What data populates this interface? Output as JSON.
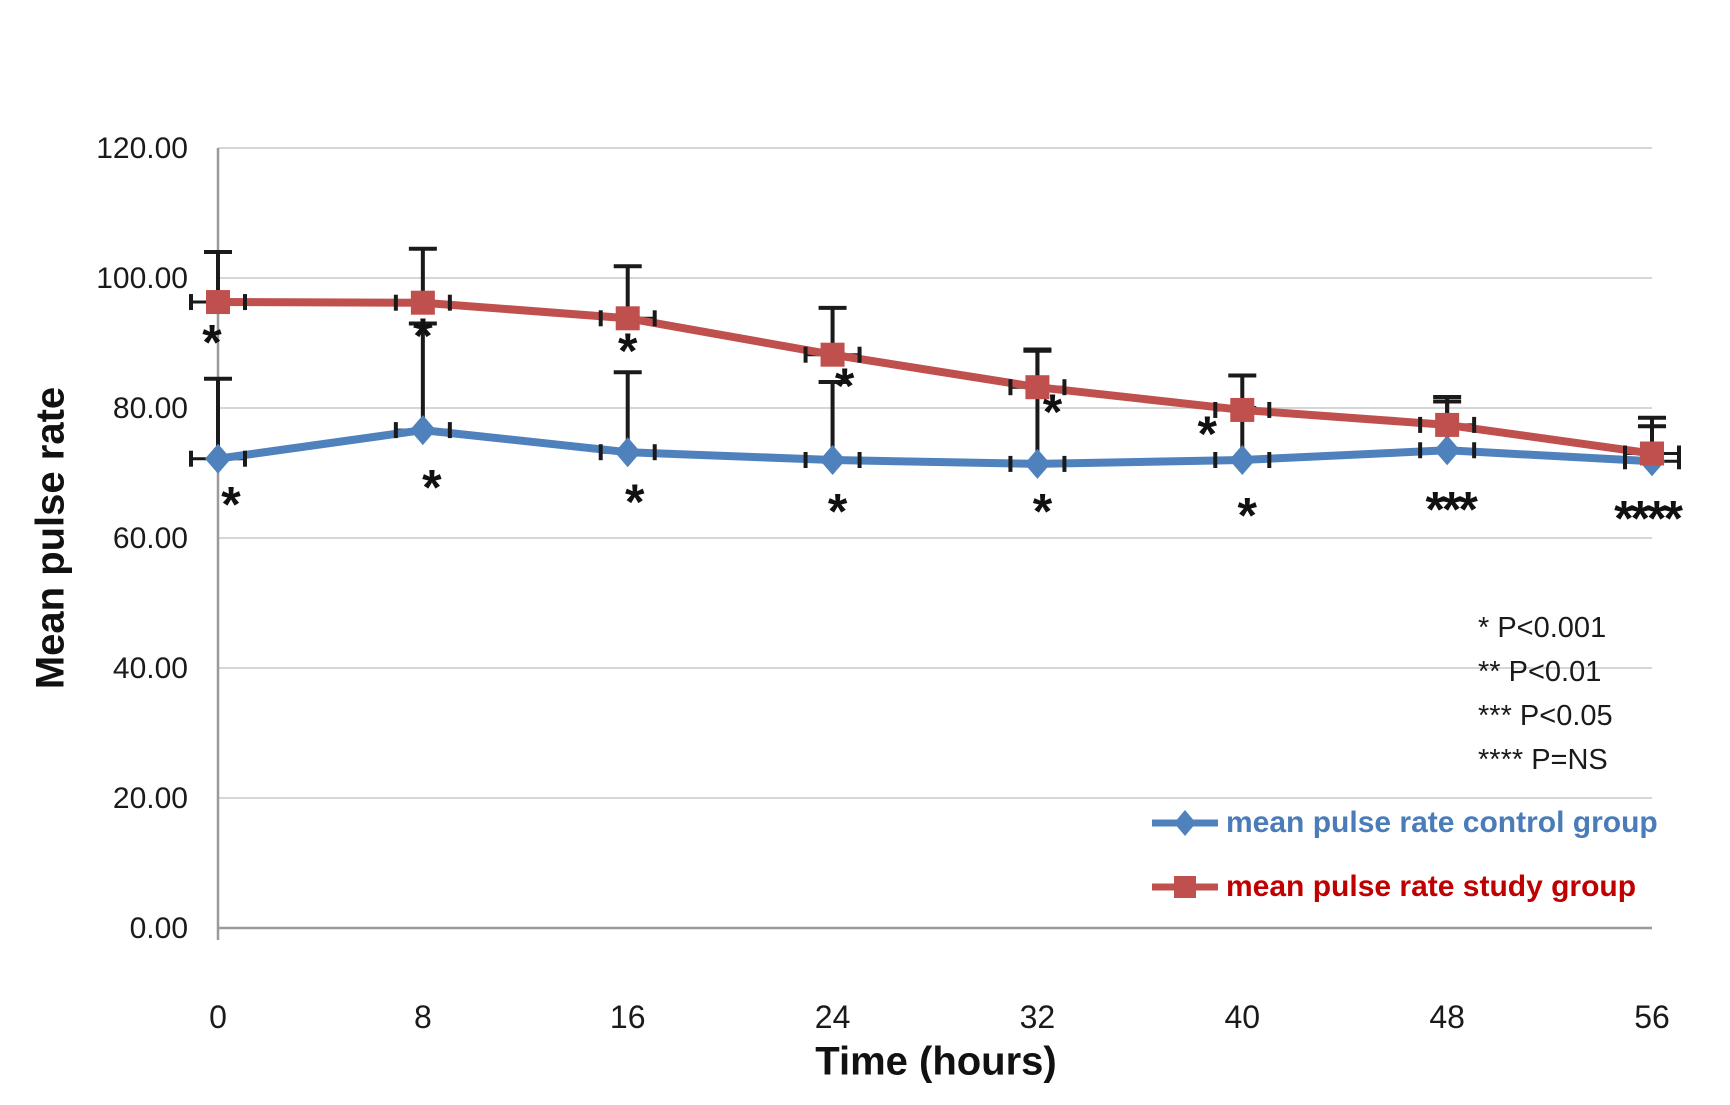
{
  "chart_data": {
    "type": "line",
    "title": "",
    "xlabel": "Time (hours)",
    "ylabel": "Mean pulse rate",
    "x_values": [
      0,
      8,
      16,
      24,
      32,
      40,
      48,
      56
    ],
    "x_tick_labels": [
      "0",
      "8",
      "16",
      "24",
      "32",
      "40",
      "48",
      "56"
    ],
    "y_tick_values": [
      0,
      20,
      40,
      60,
      80,
      100,
      120
    ],
    "y_tick_labels": [
      "0.00",
      "20.00",
      "40.00",
      "60.00",
      "80.00",
      "100.00",
      "120.00"
    ],
    "ylim": [
      0,
      120
    ],
    "grid": true,
    "legend_position": "inside-bottom-right",
    "series": [
      {
        "name": "mean pulse rate control group",
        "color": "#4F81BD",
        "marker": "diamond",
        "values": [
          72.2,
          76.6,
          73.2,
          72.0,
          71.4,
          72.0,
          73.5,
          71.8
        ],
        "error_upper": [
          84.5,
          93.0,
          85.5,
          84.0,
          88.8,
          80.0,
          81.0,
          77.2
        ]
      },
      {
        "name": "mean pulse rate study group",
        "color": "#C0504D",
        "marker": "square",
        "values": [
          96.3,
          96.2,
          93.8,
          88.2,
          83.2,
          79.7,
          77.4,
          73.0
        ],
        "error_upper": [
          104.0,
          104.5,
          101.8,
          95.4,
          89.0,
          85.0,
          81.7,
          78.5
        ]
      }
    ],
    "annotations": [
      {
        "x": 0,
        "text": "*",
        "value": 91.3,
        "dx": -6
      },
      {
        "x": 8,
        "text": "*",
        "value": 92.3,
        "dx": 0
      },
      {
        "x": 16,
        "text": "*",
        "value": 90.0,
        "dx": 0
      },
      {
        "x": 24,
        "text": "*",
        "value": 84.6,
        "dx": 12
      },
      {
        "x": 32,
        "text": "*",
        "value": 80.6,
        "dx": 15
      },
      {
        "x": 40,
        "text": "*",
        "value": 77.2,
        "dx": -35
      },
      {
        "x": 0,
        "text": "*",
        "value": 66.4,
        "dx": 13
      },
      {
        "x": 8,
        "text": "*",
        "value": 69.0,
        "dx": 9
      },
      {
        "x": 16,
        "text": "*",
        "value": 66.8,
        "dx": 7
      },
      {
        "x": 24,
        "text": "*",
        "value": 65.3,
        "dx": 5
      },
      {
        "x": 32,
        "text": "*",
        "value": 65.3,
        "dx": 5
      },
      {
        "x": 40,
        "text": "*",
        "value": 64.7,
        "dx": 5
      },
      {
        "x": 48,
        "text": "***",
        "value": 65.6,
        "dx": 3
      },
      {
        "x": 56,
        "text": "****",
        "value": 64.2,
        "dx": -5
      }
    ]
  },
  "axis_titles": {
    "y": "Mean pulse rate",
    "x": "Time (hours)"
  },
  "p_block": {
    "lines": [
      "* P<0.001",
      "** P<0.01",
      "*** P<0.05",
      "**** P=NS"
    ]
  },
  "legend": {
    "items": [
      {
        "label": "mean pulse rate control group",
        "text_color": "#4A7CBA",
        "line_color": "#4F81BD",
        "marker": "diamond"
      },
      {
        "label": "mean pulse rate study group",
        "text_color": "#C00000",
        "line_color": "#C0504D",
        "marker": "square"
      }
    ]
  },
  "style_colors": {
    "gridline": "#D6D6D6",
    "axis_line": "#9A9A9A",
    "error_bar": "#1A1A1A",
    "tick_text": "#1A1A1A",
    "annotation_text": "#111111"
  }
}
